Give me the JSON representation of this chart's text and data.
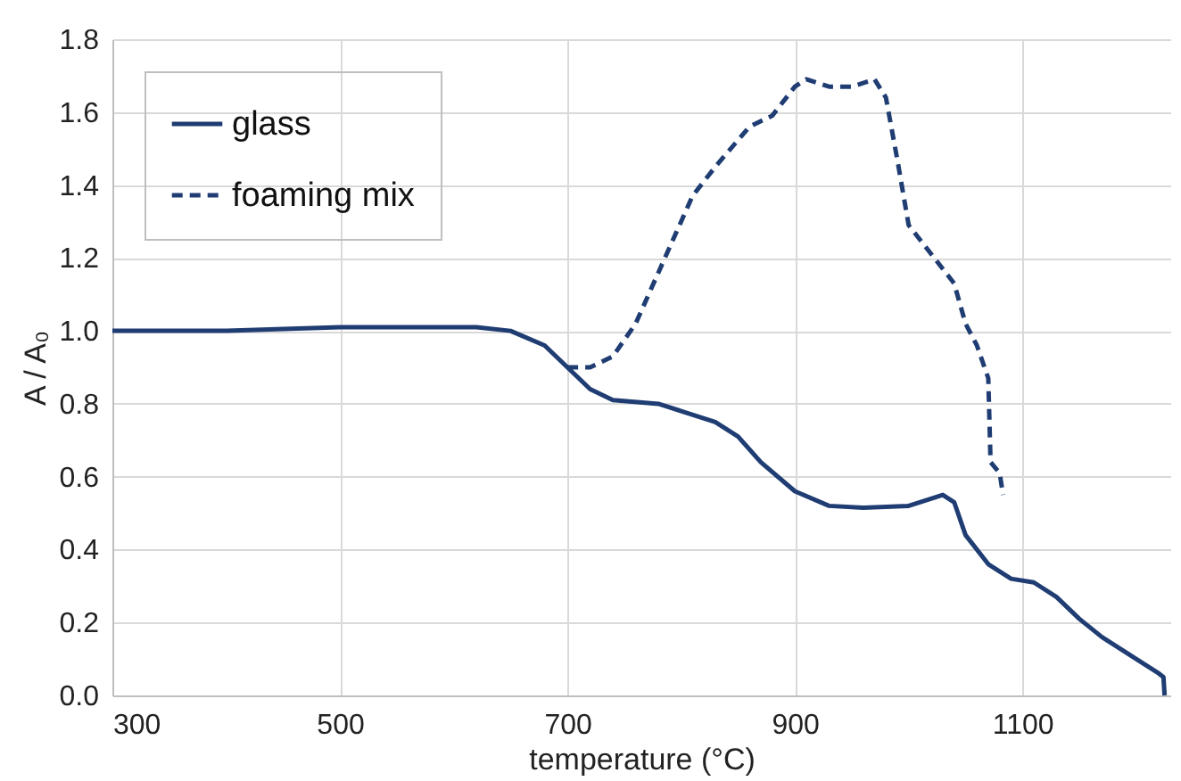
{
  "chart_data": {
    "type": "line",
    "xlabel": "temperature (°C)",
    "ylabel": "A / A₀",
    "xlim": [
      300,
      1230
    ],
    "xticks": [
      300,
      500,
      700,
      900,
      1100
    ],
    "ylim": [
      0,
      1.8
    ],
    "yticks": [
      {
        "value": 0,
        "label": "0.0"
      },
      0.2,
      0.4,
      0.6,
      0.8,
      {
        "value": 1,
        "label": "1.0"
      },
      1.2,
      1.4,
      1.6,
      1.8
    ],
    "grid": true,
    "legend": "top left",
    "series": [
      {
        "name": "glass",
        "color": "#1f3d73",
        "line_style": "solid",
        "x": [
          300,
          400,
          500,
          620,
          650,
          680,
          700,
          720,
          740,
          780,
          800,
          830,
          850,
          870,
          900,
          930,
          960,
          1000,
          1030,
          1040,
          1050,
          1070,
          1090,
          1110,
          1130,
          1150,
          1170,
          1200,
          1220,
          1224,
          1225
        ],
        "values": [
          1.0,
          1.0,
          1.01,
          1.01,
          1.0,
          0.96,
          0.9,
          0.84,
          0.81,
          0.8,
          0.78,
          0.75,
          0.71,
          0.64,
          0.56,
          0.52,
          0.515,
          0.52,
          0.55,
          0.53,
          0.44,
          0.36,
          0.32,
          0.31,
          0.27,
          0.21,
          0.16,
          0.1,
          0.06,
          0.05,
          0.0
        ]
      },
      {
        "name": "foaming mix",
        "color": "#1f3d73",
        "line_style": "dashed",
        "x": [
          700,
          720,
          740,
          760,
          780,
          800,
          810,
          830,
          860,
          880,
          900,
          910,
          930,
          950,
          970,
          980,
          990,
          1000,
          1020,
          1040,
          1050,
          1060,
          1070,
          1072,
          1080,
          1083
        ],
        "values": [
          0.9,
          0.9,
          0.93,
          1.02,
          1.16,
          1.3,
          1.37,
          1.45,
          1.56,
          1.59,
          1.67,
          1.69,
          1.67,
          1.67,
          1.69,
          1.64,
          1.47,
          1.29,
          1.21,
          1.13,
          1.02,
          0.96,
          0.87,
          0.64,
          0.61,
          0.55
        ]
      }
    ]
  }
}
